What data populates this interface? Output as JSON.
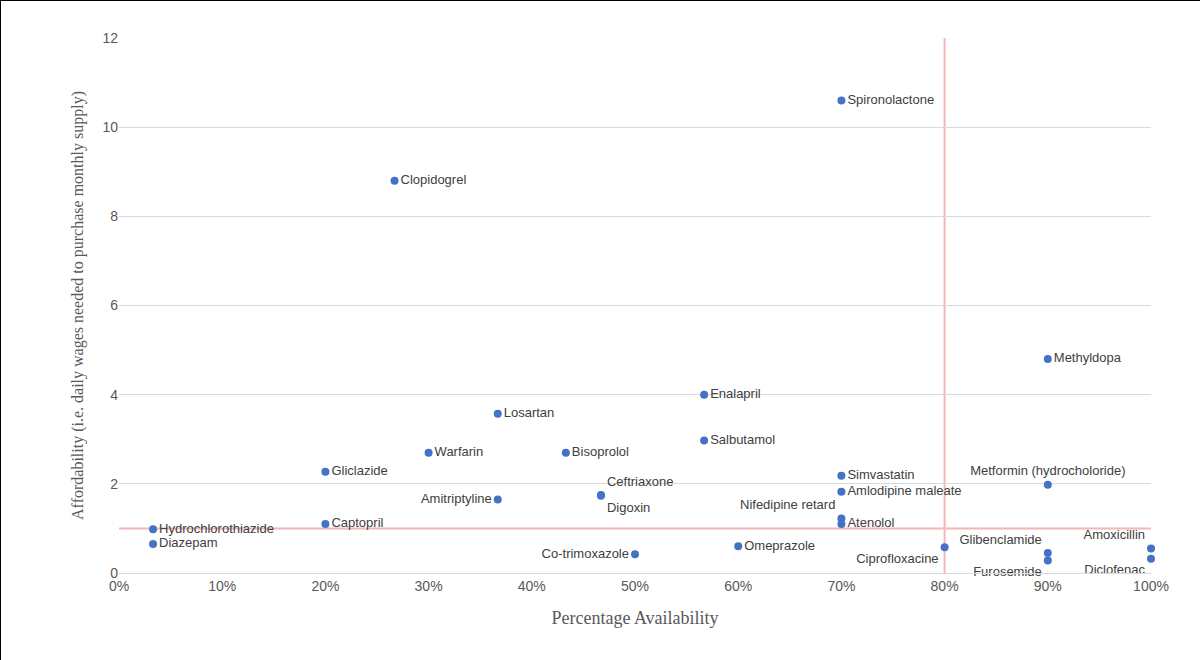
{
  "chart_data": {
    "type": "scatter",
    "x_label": "Percentage Availability",
    "y_label": "Affordability (i.e. daily wages needed to purchase monthly supply)",
    "color": "#4472c4",
    "marker": "circle",
    "data_labels": true,
    "grid": true,
    "points": [
      {
        "label": "Hydrochlorothiazide",
        "x": 3.3,
        "y": 0.98
      },
      {
        "label": "Diazepam",
        "x": 3.3,
        "y": 0.65
      },
      {
        "label": "Captopril",
        "x": 20,
        "y": 1.1
      },
      {
        "label": "Gliclazide",
        "x": 20,
        "y": 2.27
      },
      {
        "label": "Clopidogrel",
        "x": 26.7,
        "y": 8.8
      },
      {
        "label": "Warfarin",
        "x": 30,
        "y": 2.7
      },
      {
        "label": "Losartan",
        "x": 36.7,
        "y": 3.57
      },
      {
        "label": "Amitriptyline",
        "x": 36.7,
        "y": 1.65
      },
      {
        "label": "Bisoprolol",
        "x": 43.3,
        "y": 2.7
      },
      {
        "label": "Ceftriaxone",
        "x": 46.7,
        "y": 1.75
      },
      {
        "label": "Digoxin",
        "x": 46.7,
        "y": 1.73
      },
      {
        "label": "Co-trimoxazole",
        "x": 50,
        "y": 0.42
      },
      {
        "label": "Enalapril",
        "x": 56.7,
        "y": 4.0
      },
      {
        "label": "Salbutamol",
        "x": 56.7,
        "y": 2.97
      },
      {
        "label": "Omeprazole",
        "x": 60,
        "y": 0.6
      },
      {
        "label": "Spironolactone",
        "x": 70,
        "y": 10.6
      },
      {
        "label": "Simvastatin",
        "x": 70,
        "y": 2.18
      },
      {
        "label": "Amlodipine maleate",
        "x": 70,
        "y": 1.82
      },
      {
        "label": "Nifedipine retard",
        "x": 70,
        "y": 1.22
      },
      {
        "label": "Atenolol",
        "x": 70,
        "y": 1.1
      },
      {
        "label": "Ciprofloxacine",
        "x": 80,
        "y": 0.58
      },
      {
        "label": "Glibenclamide",
        "x": 90,
        "y": 0.45
      },
      {
        "label": "Furosemide",
        "x": 90,
        "y": 0.28
      },
      {
        "label": "Methyldopa",
        "x": 90,
        "y": 4.8
      },
      {
        "label": "Metformin (hydrocholoride)",
        "x": 90,
        "y": 1.98
      },
      {
        "label": "Amoxicillin",
        "x": 100,
        "y": 0.55
      },
      {
        "label": "Diclofenac",
        "x": 100,
        "y": 0.32
      }
    ],
    "reference_lines": {
      "x": [
        80
      ],
      "y": [
        1
      ],
      "color": "#f4b6b6"
    },
    "xlim": [
      0,
      100
    ],
    "xticks": [
      {
        "value": 0,
        "label": "0%"
      },
      {
        "value": 10,
        "label": "10%"
      },
      {
        "value": 20,
        "label": "20%"
      },
      {
        "value": 30,
        "label": "30%"
      },
      {
        "value": 40,
        "label": "40%"
      },
      {
        "value": 50,
        "label": "50%"
      },
      {
        "value": 60,
        "label": "60%"
      },
      {
        "value": 70,
        "label": "70%"
      },
      {
        "value": 80,
        "label": "80%"
      },
      {
        "value": 90,
        "label": "90%"
      },
      {
        "value": 100,
        "label": "100%"
      }
    ],
    "ylim": [
      0,
      12
    ],
    "yticks": [
      0,
      2,
      4,
      6,
      8,
      10,
      12
    ]
  }
}
